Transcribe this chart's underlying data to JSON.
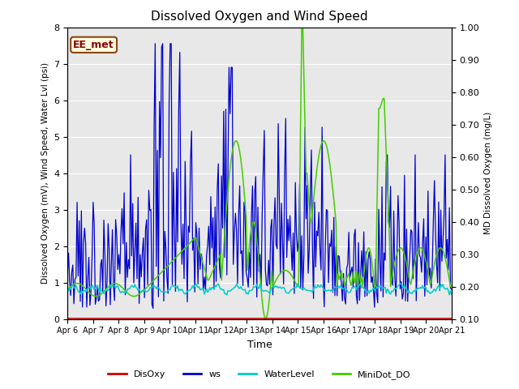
{
  "title": "Dissolved Oxygen and Wind Speed",
  "ylabel_left": "Dissolved Oxygen (mV), Wind Speed, Water Lvl (psi)",
  "ylabel_right": "MD Dissolved Oxygen (mg/L)",
  "xlabel": "Time",
  "annotation": "EE_met",
  "ylim_left": [
    0.0,
    8.0
  ],
  "ylim_right": [
    0.1,
    1.0
  ],
  "x_ticks": [
    "Apr 6",
    "Apr 7",
    "Apr 8",
    "Apr 9",
    "Apr 10",
    "Apr 11",
    "Apr 12",
    "Apr 13",
    "Apr 14",
    "Apr 15",
    "Apr 16",
    "Apr 17",
    "Apr 18",
    "Apr 19",
    "Apr 20",
    "Apr 21"
  ],
  "colors": {
    "DisOxy": "#cc0000",
    "ws": "#0000cc",
    "WaterLevel": "#00cccc",
    "MiniDot_DO": "#44cc00"
  },
  "background_color": "#e8e8e8",
  "yticks_left": [
    0.0,
    1.0,
    2.0,
    3.0,
    4.0,
    5.0,
    6.0,
    7.0,
    8.0
  ],
  "yticks_right": [
    0.1,
    0.2,
    0.3,
    0.4,
    0.5,
    0.6,
    0.7,
    0.8,
    0.9,
    1.0
  ]
}
